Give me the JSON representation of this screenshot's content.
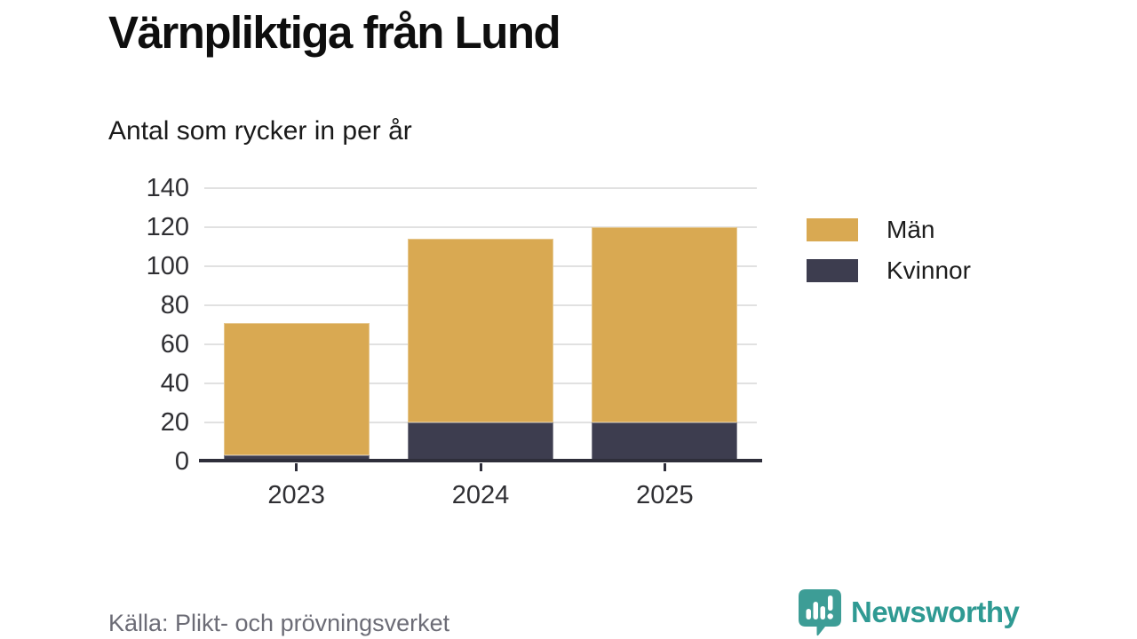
{
  "chart_data": {
    "type": "bar",
    "stacked": true,
    "title": "Värnpliktiga från Lund",
    "subtitle": "Antal som rycker in per år",
    "categories": [
      "2023",
      "2024",
      "2025"
    ],
    "series": [
      {
        "name": "Män",
        "color": "#D9A952",
        "values": [
          68,
          94,
          100
        ]
      },
      {
        "name": "Kvinnor",
        "color": "#3D3D4F",
        "values": [
          3,
          20,
          20
        ]
      }
    ],
    "stack_order_bottom_up": [
      "Kvinnor",
      "Män"
    ],
    "totals": [
      71,
      114,
      120
    ],
    "ylim": [
      0,
      140
    ],
    "yticks": [
      0,
      20,
      40,
      60,
      80,
      100,
      120,
      140
    ],
    "grid": "horizontal",
    "legend_position": "right"
  },
  "source": "Källa: Plikt- och prövningsverket",
  "brand": {
    "name": "Newsworthy",
    "color": "#2F9A93",
    "icon": "newsworthy-speech-bubble-chart-icon"
  },
  "colors": {
    "background": "#FFFFFF",
    "grid": "#E1E1E1",
    "axis": "#2E2E3A",
    "tick_label": "#2F2F33",
    "title": "#0E0E0E",
    "subtitle": "#1A1A1A",
    "source": "#6C6C76"
  }
}
